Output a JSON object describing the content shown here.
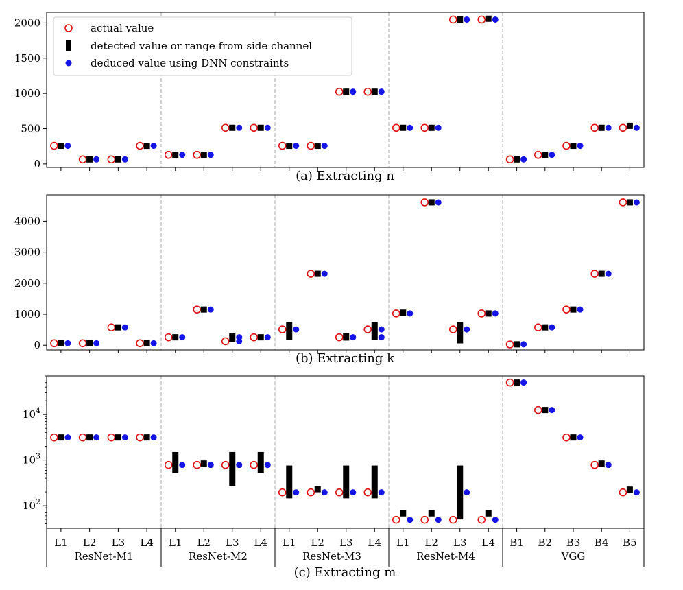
{
  "chart_data": {
    "type": "scatter",
    "groups": [
      {
        "name": "ResNet-M1",
        "layers": [
          "L1",
          "L2",
          "L3",
          "L4"
        ]
      },
      {
        "name": "ResNet-M2",
        "layers": [
          "L1",
          "L2",
          "L3",
          "L4"
        ]
      },
      {
        "name": "ResNet-M3",
        "layers": [
          "L1",
          "L2",
          "L3",
          "L4"
        ]
      },
      {
        "name": "ResNet-M4",
        "layers": [
          "L1",
          "L2",
          "L3",
          "L4"
        ]
      },
      {
        "name": "VGG",
        "layers": [
          "B1",
          "B2",
          "B3",
          "B4",
          "B5"
        ]
      }
    ],
    "legend": {
      "actual": "actual value",
      "detected": "detected value or range from side channel",
      "deduced": "deduced value using DNN constraints"
    },
    "colors": {
      "actual": "#e01010",
      "detected": "#000000",
      "deduced": "#1515e8",
      "separator": "#aaaaaa"
    },
    "panels": [
      {
        "id": "n",
        "title": "(a) Extracting n",
        "scale": "linear",
        "ylim": [
          -50,
          2150
        ],
        "yticks": [
          0,
          500,
          1000,
          1500,
          2000
        ],
        "actual": [
          256,
          64,
          64,
          256,
          128,
          128,
          512,
          512,
          256,
          256,
          1024,
          1024,
          512,
          512,
          2048,
          2048,
          64,
          128,
          256,
          512,
          512
        ],
        "detected": [
          [
            256
          ],
          [
            64
          ],
          [
            64
          ],
          [
            256
          ],
          [
            128
          ],
          [
            128
          ],
          [
            512
          ],
          [
            512
          ],
          [
            256
          ],
          [
            256
          ],
          [
            1024
          ],
          [
            1024
          ],
          [
            512
          ],
          [
            512
          ],
          [
            2048
          ],
          [
            2060
          ],
          [
            64
          ],
          [
            128
          ],
          [
            256
          ],
          [
            512
          ],
          [
            540
          ]
        ],
        "deduced": [
          256,
          64,
          64,
          256,
          128,
          128,
          512,
          512,
          256,
          256,
          1024,
          1024,
          512,
          512,
          2048,
          2048,
          64,
          128,
          256,
          512,
          512
        ]
      },
      {
        "id": "k",
        "title": "(b) Extracting k",
        "scale": "linear",
        "ylim": [
          -150,
          4850
        ],
        "yticks": [
          0,
          1000,
          2000,
          3000,
          4000
        ],
        "actual": [
          64,
          64,
          576,
          64,
          256,
          1152,
          128,
          256,
          512,
          2304,
          256,
          512,
          1024,
          4608,
          512,
          1024,
          27,
          576,
          1152,
          2304,
          4608
        ],
        "detected": [
          [
            64
          ],
          [
            64
          ],
          [
            576
          ],
          [
            64
          ],
          [
            256
          ],
          [
            1152
          ],
          [
            100,
            380
          ],
          [
            256
          ],
          [
            160,
            750
          ],
          [
            2304
          ],
          [
            150,
            400
          ],
          [
            160,
            750
          ],
          [
            1050
          ],
          [
            4608
          ],
          [
            60,
            750
          ],
          [
            1024
          ],
          [
            30
          ],
          [
            576
          ],
          [
            1152
          ],
          [
            2304
          ],
          [
            4608
          ]
        ],
        "deduced": [
          [
            64
          ],
          [
            64
          ],
          [
            576
          ],
          [
            64
          ],
          [
            256
          ],
          [
            1152
          ],
          [
            128,
            256
          ],
          [
            256
          ],
          [
            512
          ],
          [
            2304
          ],
          [
            256
          ],
          [
            256,
            512
          ],
          [
            1024
          ],
          [
            4608
          ],
          [
            512
          ],
          [
            1024
          ],
          [
            30
          ],
          [
            576
          ],
          [
            1152
          ],
          [
            2304
          ],
          [
            4608
          ]
        ]
      },
      {
        "id": "m",
        "title": "(c) Extracting m",
        "scale": "log",
        "ylim": [
          32,
          70000
        ],
        "yticks": [
          100,
          1000,
          10000
        ],
        "ytick_labels": [
          [
            "10",
            "2"
          ],
          [
            "10",
            "3"
          ],
          [
            "10",
            "4"
          ]
        ],
        "actual": [
          3136,
          3136,
          3136,
          3136,
          784,
          784,
          784,
          784,
          196,
          196,
          196,
          196,
          49,
          49,
          49,
          49,
          50176,
          12544,
          3136,
          784,
          196
        ],
        "detected": [
          [
            3136
          ],
          [
            3136
          ],
          [
            3136
          ],
          [
            3136
          ],
          [
            520,
            1500
          ],
          [
            840
          ],
          [
            270,
            1500
          ],
          [
            520,
            1500
          ],
          [
            145,
            760
          ],
          [
            230
          ],
          [
            145,
            760
          ],
          [
            145,
            760
          ],
          [
            68
          ],
          [
            68
          ],
          [
            50,
            760
          ],
          [
            68
          ],
          [
            50176
          ],
          [
            12544
          ],
          [
            3136
          ],
          [
            840
          ],
          [
            225
          ]
        ],
        "deduced": [
          3136,
          3136,
          3136,
          3136,
          784,
          784,
          784,
          784,
          196,
          196,
          196,
          196,
          49,
          49,
          196,
          49,
          50176,
          12544,
          3136,
          784,
          196
        ]
      }
    ]
  }
}
